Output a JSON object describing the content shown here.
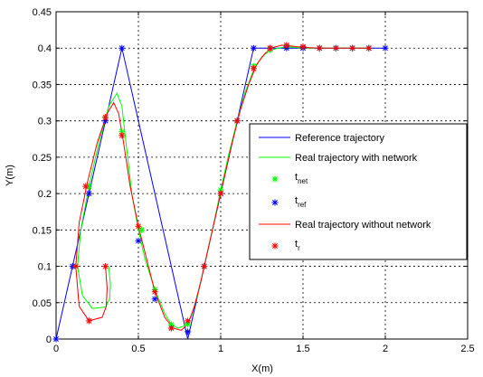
{
  "chart_data": {
    "type": "line",
    "title": "",
    "xlabel": "X(m)",
    "ylabel": "Y(m)",
    "xlim": [
      0,
      2.5
    ],
    "ylim": [
      0,
      0.45
    ],
    "xticks": [
      "0",
      "0.5",
      "1",
      "1.5",
      "2",
      "2.5"
    ],
    "yticks": [
      "0",
      "0.05",
      "0.1",
      "0.15",
      "0.2",
      "0.25",
      "0.3",
      "0.35",
      "0.4",
      "0.45"
    ],
    "grid": true,
    "legend_position": "right",
    "series": [
      {
        "name": "Reference trajectory",
        "style": "line",
        "color": "#0000ff",
        "x": [
          0,
          0.4,
          0.8,
          1.2,
          2.0
        ],
        "y": [
          0,
          0.4,
          0,
          0.4,
          0.4
        ]
      },
      {
        "name": "Real trajectory with network",
        "style": "line",
        "color": "#00ff00",
        "x": [
          0.32,
          0.33,
          0.325,
          0.3,
          0.22,
          0.16,
          0.13,
          0.15,
          0.2,
          0.26,
          0.32,
          0.37,
          0.4,
          0.42,
          0.46,
          0.5,
          0.54,
          0.6,
          0.66,
          0.7,
          0.74,
          0.78,
          0.82,
          0.86,
          0.9,
          0.95,
          1.0,
          1.05,
          1.1,
          1.15,
          1.2,
          1.25,
          1.3,
          1.35,
          1.4,
          1.5,
          1.6,
          1.7,
          1.8,
          1.9
        ],
        "y": [
          0.1,
          0.075,
          0.055,
          0.044,
          0.042,
          0.06,
          0.1,
          0.15,
          0.21,
          0.27,
          0.32,
          0.338,
          0.32,
          0.28,
          0.2,
          0.15,
          0.11,
          0.068,
          0.035,
          0.02,
          0.015,
          0.018,
          0.03,
          0.06,
          0.1,
          0.15,
          0.205,
          0.255,
          0.3,
          0.34,
          0.37,
          0.388,
          0.397,
          0.4,
          0.402,
          0.4,
          0.4,
          0.4,
          0.4,
          0.4
        ]
      },
      {
        "name": "t_net",
        "style": "marker",
        "color": "#00ff00",
        "x": [
          0.12,
          0.2,
          0.3,
          0.4,
          0.52,
          0.6,
          0.7,
          0.8,
          0.9,
          1.0,
          1.1,
          1.2,
          1.3,
          1.4,
          1.5,
          1.6,
          1.7,
          1.8,
          1.9
        ],
        "y": [
          0.1,
          0.21,
          0.305,
          0.285,
          0.15,
          0.068,
          0.02,
          0.02,
          0.1,
          0.205,
          0.3,
          0.375,
          0.398,
          0.402,
          0.4,
          0.4,
          0.4,
          0.4,
          0.4
        ]
      },
      {
        "name": "t_ref",
        "style": "marker",
        "color": "#0000ff",
        "x": [
          0,
          0.1,
          0.2,
          0.3,
          0.4,
          0.5,
          0.6,
          0.7,
          0.8,
          0.9,
          1.0,
          1.1,
          1.2,
          1.3,
          1.4,
          1.5,
          1.6,
          1.7,
          1.8,
          1.9,
          2.0
        ],
        "y": [
          0,
          0.1,
          0.2,
          0.3,
          0.4,
          0.135,
          0.055,
          0.015,
          0.01,
          0.1,
          0.2,
          0.3,
          0.4,
          0.4,
          0.4,
          0.4,
          0.4,
          0.4,
          0.4,
          0.4,
          0.4
        ]
      },
      {
        "name": "Real trajectory without network",
        "style": "line",
        "color": "#ff0000",
        "x": [
          0.3,
          0.31,
          0.305,
          0.28,
          0.2,
          0.14,
          0.12,
          0.14,
          0.19,
          0.25,
          0.31,
          0.35,
          0.38,
          0.41,
          0.45,
          0.5,
          0.55,
          0.6,
          0.66,
          0.71,
          0.76,
          0.8,
          0.84,
          0.88,
          0.92,
          0.97,
          1.02,
          1.07,
          1.12,
          1.17,
          1.22,
          1.27,
          1.32,
          1.37,
          1.42,
          1.5,
          1.6,
          1.7,
          1.8,
          1.9
        ],
        "y": [
          0.1,
          0.07,
          0.045,
          0.03,
          0.025,
          0.045,
          0.1,
          0.16,
          0.215,
          0.27,
          0.31,
          0.325,
          0.31,
          0.27,
          0.21,
          0.155,
          0.11,
          0.065,
          0.03,
          0.015,
          0.012,
          0.02,
          0.045,
          0.08,
          0.12,
          0.17,
          0.22,
          0.27,
          0.315,
          0.35,
          0.378,
          0.393,
          0.401,
          0.404,
          0.403,
          0.401,
          0.4,
          0.4,
          0.4,
          0.4
        ]
      },
      {
        "name": "t_r",
        "style": "marker",
        "color": "#ff0000",
        "x": [
          0.2,
          0.3,
          0.12,
          0.18,
          0.3,
          0.4,
          0.5,
          0.6,
          0.7,
          0.8,
          0.9,
          1.0,
          1.1,
          1.2,
          1.3,
          1.4,
          1.5,
          1.6,
          1.7,
          1.8,
          1.9
        ],
        "y": [
          0.025,
          0.1,
          0.1,
          0.21,
          0.305,
          0.28,
          0.155,
          0.065,
          0.015,
          0.025,
          0.1,
          0.2,
          0.3,
          0.372,
          0.4,
          0.404,
          0.402,
          0.4,
          0.4,
          0.4,
          0.4
        ]
      }
    ],
    "legend": [
      {
        "label": "Reference trajectory",
        "base": "",
        "sub": "",
        "kind": "line",
        "color": "#0000ff"
      },
      {
        "label": "Real trajectory with network",
        "base": "",
        "sub": "",
        "kind": "line",
        "color": "#00ff00"
      },
      {
        "label": "",
        "base": "t",
        "sub": "net",
        "kind": "marker",
        "color": "#00ff00"
      },
      {
        "label": "",
        "base": "t",
        "sub": "ref",
        "kind": "marker",
        "color": "#0000ff"
      },
      {
        "label": "Real trajectory without network",
        "base": "",
        "sub": "",
        "kind": "line",
        "color": "#ff0000"
      },
      {
        "label": "",
        "base": "t",
        "sub": "r",
        "kind": "marker",
        "color": "#ff0000"
      }
    ]
  }
}
